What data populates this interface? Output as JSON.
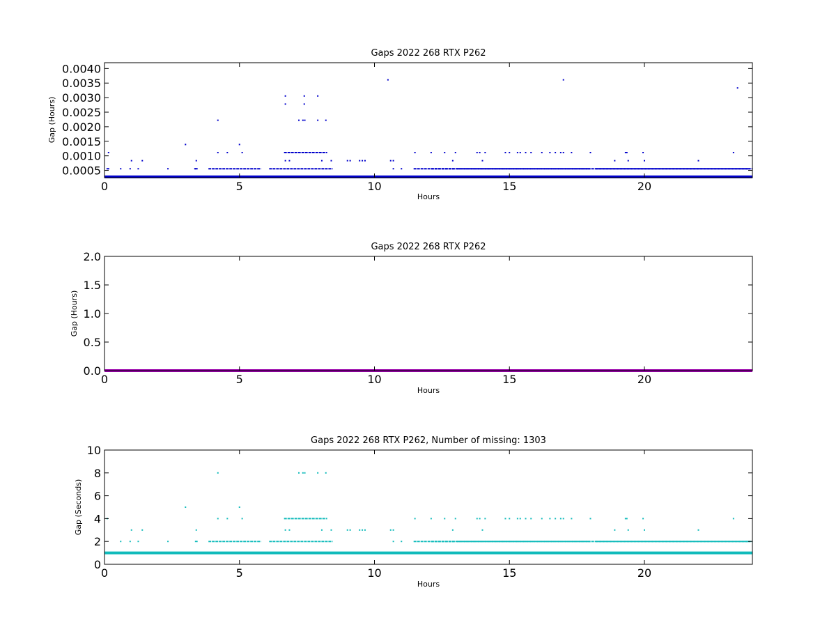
{
  "chart_data": [
    {
      "type": "scatter",
      "title": "Gaps 2022 268 RTX  P262",
      "xlabel": "Hours",
      "ylabel": "Gap (Hours)",
      "xlim": [
        0,
        24
      ],
      "ylim": [
        0.00025,
        0.0042
      ],
      "xticks": [
        "0",
        "5",
        "10",
        "15",
        "20"
      ],
      "xtick_values": [
        0,
        5,
        10,
        15,
        20
      ],
      "yticks": [
        "0.0005",
        "0.0010",
        "0.0015",
        "0.0020",
        "0.0025",
        "0.0030",
        "0.0035",
        "0.0040"
      ],
      "ytick_values": [
        0.0005,
        0.001,
        0.0015,
        0.002,
        0.0025,
        0.003,
        0.0035,
        0.004
      ],
      "color": "#0000cc",
      "grid": false,
      "baseline": 0.000278,
      "points": [
        [
          0.1,
          0.000556
        ],
        [
          0.15,
          0.000556
        ],
        [
          0.15,
          0.001111
        ],
        [
          0.6,
          0.000556
        ],
        [
          0.95,
          0.000556
        ],
        [
          1.0,
          0.000833
        ],
        [
          1.25,
          0.000556
        ],
        [
          1.4,
          0.000833
        ],
        [
          2.35,
          0.000556
        ],
        [
          3.0,
          0.001389
        ],
        [
          3.35,
          0.000556
        ],
        [
          3.4,
          0.000833
        ],
        [
          4.2,
          0.002222
        ],
        [
          4.2,
          0.001111
        ],
        [
          4.55,
          0.001111
        ],
        [
          5.0,
          0.001389
        ],
        [
          5.1,
          0.001111
        ],
        [
          6.7,
          0.003056
        ],
        [
          6.7,
          0.002778
        ],
        [
          6.7,
          0.000833
        ],
        [
          6.85,
          0.000833
        ],
        [
          7.2,
          0.002222
        ],
        [
          7.35,
          0.002222
        ],
        [
          7.42,
          0.002222
        ],
        [
          7.4,
          0.003056
        ],
        [
          7.4,
          0.002778
        ],
        [
          7.9,
          0.003056
        ],
        [
          7.9,
          0.002222
        ],
        [
          8.2,
          0.002222
        ],
        [
          8.05,
          0.000833
        ],
        [
          8.4,
          0.000833
        ],
        [
          9.0,
          0.000833
        ],
        [
          9.1,
          0.000833
        ],
        [
          9.45,
          0.000833
        ],
        [
          9.55,
          0.000833
        ],
        [
          9.65,
          0.000833
        ],
        [
          10.5,
          0.003611
        ],
        [
          10.6,
          0.000833
        ],
        [
          10.7,
          0.000833
        ],
        [
          10.7,
          0.000556
        ],
        [
          11.0,
          0.000556
        ],
        [
          11.5,
          0.001111
        ],
        [
          12.1,
          0.001111
        ],
        [
          12.6,
          0.001111
        ],
        [
          12.9,
          0.000833
        ],
        [
          13.0,
          0.001111
        ],
        [
          13.8,
          0.001111
        ],
        [
          13.9,
          0.001111
        ],
        [
          14.0,
          0.000833
        ],
        [
          14.1,
          0.001111
        ],
        [
          14.85,
          0.001111
        ],
        [
          15.0,
          0.001111
        ],
        [
          15.3,
          0.001111
        ],
        [
          15.4,
          0.001111
        ],
        [
          15.6,
          0.001111
        ],
        [
          15.8,
          0.001111
        ],
        [
          16.2,
          0.001111
        ],
        [
          16.5,
          0.001111
        ],
        [
          16.7,
          0.001111
        ],
        [
          16.9,
          0.001111
        ],
        [
          17.0,
          0.001111
        ],
        [
          17.0,
          0.003611
        ],
        [
          17.3,
          0.001111
        ],
        [
          18.0,
          0.001111
        ],
        [
          18.9,
          0.000833
        ],
        [
          19.3,
          0.001111
        ],
        [
          19.35,
          0.001111
        ],
        [
          19.4,
          0.000833
        ],
        [
          19.95,
          0.001111
        ],
        [
          20.0,
          0.000833
        ],
        [
          22.0,
          0.000833
        ],
        [
          23.3,
          0.001111
        ],
        [
          23.45,
          0.003333
        ]
      ],
      "segments": [
        [
          3.35,
          3.45,
          0.000556
        ],
        [
          3.85,
          5.8,
          0.000556
        ],
        [
          6.1,
          8.45,
          0.000556
        ],
        [
          6.65,
          8.25,
          0.001111
        ],
        [
          11.45,
          24,
          0.000556
        ],
        [
          12.1,
          13.0,
          0.000556
        ],
        [
          13.05,
          18.0,
          0.000556
        ],
        [
          18.2,
          23.9,
          0.000556
        ]
      ]
    },
    {
      "type": "line",
      "title": "Gaps 2022 268 RTX  P262",
      "xlabel": "Hours",
      "ylabel": "Gap (Hours)",
      "xlim": [
        0,
        24
      ],
      "ylim": [
        0,
        2.0
      ],
      "xticks": [
        "0",
        "5",
        "10",
        "15",
        "20"
      ],
      "xtick_values": [
        0,
        5,
        10,
        15,
        20
      ],
      "yticks": [
        "0.0",
        "0.5",
        "1.0",
        "1.5",
        "2.0"
      ],
      "ytick_values": [
        0,
        0.5,
        1.0,
        1.5,
        2.0
      ],
      "color": "#9900aa",
      "grid": false,
      "baseline": 0.0,
      "points": [],
      "segments": []
    },
    {
      "type": "scatter",
      "title": "Gaps 2022 268 RTX  P262, Number of missing: 1303",
      "xlabel": "Hours",
      "ylabel": "Gap (Seconds)",
      "xlim": [
        0,
        24
      ],
      "ylim": [
        0,
        10
      ],
      "xticks": [
        "0",
        "5",
        "10",
        "15",
        "20"
      ],
      "xtick_values": [
        0,
        5,
        10,
        15,
        20
      ],
      "yticks": [
        "0",
        "2",
        "4",
        "6",
        "8",
        "10"
      ],
      "ytick_values": [
        0,
        2,
        4,
        6,
        8,
        10
      ],
      "color": "#11bbbb",
      "grid": false,
      "baseline": 1.0,
      "points": [
        [
          0.1,
          4
        ],
        [
          0.6,
          2
        ],
        [
          0.95,
          2
        ],
        [
          1.0,
          3
        ],
        [
          1.25,
          2
        ],
        [
          1.4,
          3
        ],
        [
          2.35,
          2
        ],
        [
          3.0,
          5
        ],
        [
          3.4,
          3
        ],
        [
          4.2,
          8
        ],
        [
          4.2,
          4
        ],
        [
          4.55,
          4
        ],
        [
          5.0,
          5
        ],
        [
          5.1,
          4
        ],
        [
          6.7,
          3
        ],
        [
          6.85,
          3
        ],
        [
          7.2,
          8
        ],
        [
          7.35,
          8
        ],
        [
          7.42,
          8
        ],
        [
          7.9,
          8
        ],
        [
          8.2,
          8
        ],
        [
          8.05,
          3
        ],
        [
          8.4,
          3
        ],
        [
          9.0,
          3
        ],
        [
          9.1,
          3
        ],
        [
          9.45,
          3
        ],
        [
          9.55,
          3
        ],
        [
          9.65,
          3
        ],
        [
          10.6,
          3
        ],
        [
          10.7,
          3
        ],
        [
          10.7,
          2
        ],
        [
          11.0,
          2
        ],
        [
          11.5,
          4
        ],
        [
          12.1,
          4
        ],
        [
          12.6,
          4
        ],
        [
          12.9,
          3
        ],
        [
          13.0,
          4
        ],
        [
          13.8,
          4
        ],
        [
          13.9,
          4
        ],
        [
          14.0,
          3
        ],
        [
          14.1,
          4
        ],
        [
          14.85,
          4
        ],
        [
          15.0,
          4
        ],
        [
          15.3,
          4
        ],
        [
          15.4,
          4
        ],
        [
          15.6,
          4
        ],
        [
          15.8,
          4
        ],
        [
          16.2,
          4
        ],
        [
          16.5,
          4
        ],
        [
          16.7,
          4
        ],
        [
          16.9,
          4
        ],
        [
          17.0,
          4
        ],
        [
          17.3,
          4
        ],
        [
          18.0,
          4
        ],
        [
          18.9,
          3
        ],
        [
          19.3,
          4
        ],
        [
          19.35,
          4
        ],
        [
          19.4,
          3
        ],
        [
          19.95,
          4
        ],
        [
          20.0,
          3
        ],
        [
          22.0,
          3
        ],
        [
          23.3,
          4
        ]
      ],
      "segments": [
        [
          3.35,
          3.45,
          2
        ],
        [
          3.85,
          5.8,
          2
        ],
        [
          6.1,
          8.45,
          2
        ],
        [
          6.65,
          8.25,
          4
        ],
        [
          11.45,
          24,
          2
        ],
        [
          12.1,
          13.0,
          2
        ],
        [
          13.05,
          18.0,
          2
        ],
        [
          18.2,
          23.9,
          2
        ]
      ]
    }
  ]
}
